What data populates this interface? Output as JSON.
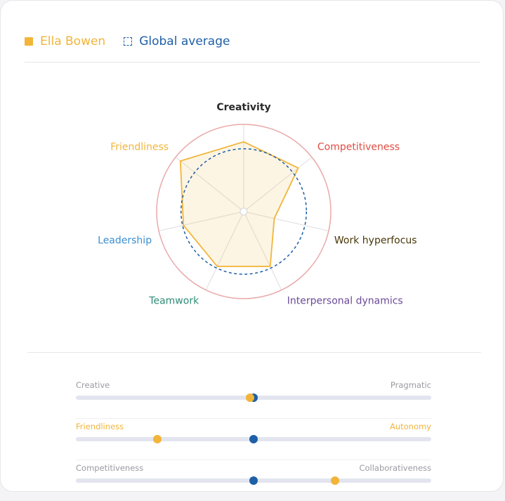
{
  "legend": {
    "user_label": "Ella Bowen",
    "average_label": "Global average"
  },
  "colors": {
    "user": "#f2b53a",
    "average": "#1f5fa6",
    "outer_ring": "#e9a9a9",
    "axis": "#e2e2e6"
  },
  "chart_data": {
    "type": "radar",
    "axes": [
      {
        "label": "Creativity",
        "color": "#2a2a2a"
      },
      {
        "label": "Competitiveness",
        "color": "#de4c42"
      },
      {
        "label": "Work hyperfocus",
        "color": "#4a3708"
      },
      {
        "label": "Interpersonal dynamics",
        "color": "#6b4a98"
      },
      {
        "label": "Teamwork",
        "color": "#2f8c77"
      },
      {
        "label": "Leadership",
        "color": "#3b8fd1"
      },
      {
        "label": "Friendliness",
        "color": "#f2b53a"
      }
    ],
    "range": [
      0,
      1
    ],
    "series": [
      {
        "name": "Ella Bowen",
        "style": "filled",
        "values": [
          0.8,
          0.8,
          0.36,
          0.7,
          0.7,
          0.71,
          0.93
        ]
      },
      {
        "name": "Global average",
        "style": "dashed",
        "values": [
          0.72,
          0.72,
          0.72,
          0.72,
          0.72,
          0.72,
          0.72
        ]
      }
    ]
  },
  "sliders": [
    {
      "left": "Creative",
      "right": "Pragmatic",
      "left_color": "#9a9aa3",
      "right_color": "#9a9aa3",
      "user": 0.49,
      "average": 0.5
    },
    {
      "left": "Friendliness",
      "right": "Autonomy",
      "left_color": "#f2b53a",
      "right_color": "#f2b53a",
      "user": 0.23,
      "average": 0.5
    },
    {
      "left": "Competitiveness",
      "right": "Collaborativeness",
      "left_color": "#9a9aa3",
      "right_color": "#9a9aa3",
      "user": 0.73,
      "average": 0.5
    }
  ]
}
